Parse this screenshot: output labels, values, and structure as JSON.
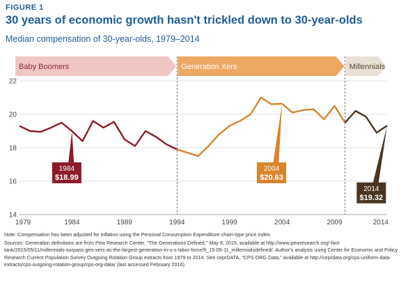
{
  "header": {
    "figure_label": "FIGURE 1",
    "title": "30 years of economic growth hasn't trickled down to 30-year-olds",
    "subtitle": "Median compensation of 30-year-olds, 1979–2014"
  },
  "chart_data": {
    "type": "line",
    "title": "30 years of economic growth hasn't trickled down to 30-year-olds",
    "subtitle": "Median compensation of 30-year-olds, 1979–2014",
    "xlim": [
      1979,
      2014
    ],
    "ylim": [
      14,
      22
    ],
    "x_ticks": [
      "1979",
      "1984",
      "1989",
      "1994",
      "1999",
      "2004",
      "2009",
      "2014"
    ],
    "y_ticks": [
      "14",
      "16",
      "18",
      "20",
      "22"
    ],
    "grid": "horizontal",
    "generations": [
      {
        "name": "Baby Boomers",
        "start": 1979,
        "end": 1994,
        "color": "#f0c6c4",
        "text_color": "#8b2a2e"
      },
      {
        "name": "Generation Xers",
        "start": 1994,
        "end": 2010,
        "color": "#efa764",
        "text_color": "#ffffff"
      },
      {
        "name": "Millennials",
        "start": 2010,
        "end": 2014,
        "color": "#e9e1d6",
        "text_color": "#5a4630"
      }
    ],
    "series": [
      {
        "segment": "boomers",
        "color": "#8b1c2a",
        "x": [
          1979,
          1980,
          1981,
          1982,
          1983,
          1984,
          1985,
          1986,
          1987,
          1988,
          1989,
          1990,
          1991,
          1992,
          1993,
          1994
        ],
        "values": [
          19.3,
          19.0,
          18.95,
          19.2,
          19.5,
          18.99,
          18.4,
          19.6,
          19.2,
          19.55,
          18.5,
          18.1,
          19.0,
          18.65,
          18.2,
          17.9
        ]
      },
      {
        "segment": "genx",
        "color": "#d9842e",
        "x": [
          1994,
          1995,
          1996,
          1997,
          1998,
          1999,
          2000,
          2001,
          2002,
          2003,
          2004,
          2005,
          2006,
          2007,
          2008,
          2009,
          2010
        ],
        "values": [
          17.9,
          17.7,
          17.5,
          18.1,
          18.8,
          19.3,
          19.6,
          20.0,
          21.0,
          20.6,
          20.63,
          20.1,
          20.25,
          20.3,
          19.7,
          20.5,
          19.5
        ]
      },
      {
        "segment": "millennials",
        "color": "#4a3520",
        "x": [
          2010,
          2011,
          2012,
          2013,
          2014
        ],
        "values": [
          19.5,
          20.2,
          19.85,
          18.9,
          19.32
        ]
      }
    ],
    "callouts": [
      {
        "year": "1984",
        "value": "$18.99",
        "x": 1984,
        "y": 18.99,
        "color": "#8b1c2a",
        "box_x": 1983.5,
        "box_y": 16.5
      },
      {
        "year": "2004",
        "value": "$20.63",
        "x": 2004,
        "y": 20.63,
        "color": "#d9842e",
        "box_x": 2003,
        "box_y": 16.5
      },
      {
        "year": "2014",
        "value": "$19.32",
        "x": 2014,
        "y": 19.32,
        "color": "#4a3520",
        "box_x": 2012.5,
        "box_y": 15.3
      }
    ],
    "dividers": [
      1994,
      2010
    ]
  },
  "notes": {
    "note": "Note: Compensation has been adjusted for inflation using the Personal Consumption Expenditure chain-type price index.",
    "sources": "Sources: Generation definitions are from Pew Research Center, \"The Generations Defined,\" May 8, 2015, available at http://www.pewresearch.org/-fact-tank/2015/05/11/millennials-surpass-gen-xers-as-the-largest-generation-in-u-s-labor-force/ft_15-05-11_millennialsdefined/. Author's analysis using Center for Economic and Policy Research Current Population Survey Outgoing Rotation Group extracts from 1979 to 2014. See ceprDATA, \"CPS ORG Data,\" available at http://ceprdata.org/cps-uniform-data-extracts/cps-outgoing-rotation-group/cps-org-data/ (last accessed February 2016)."
  }
}
